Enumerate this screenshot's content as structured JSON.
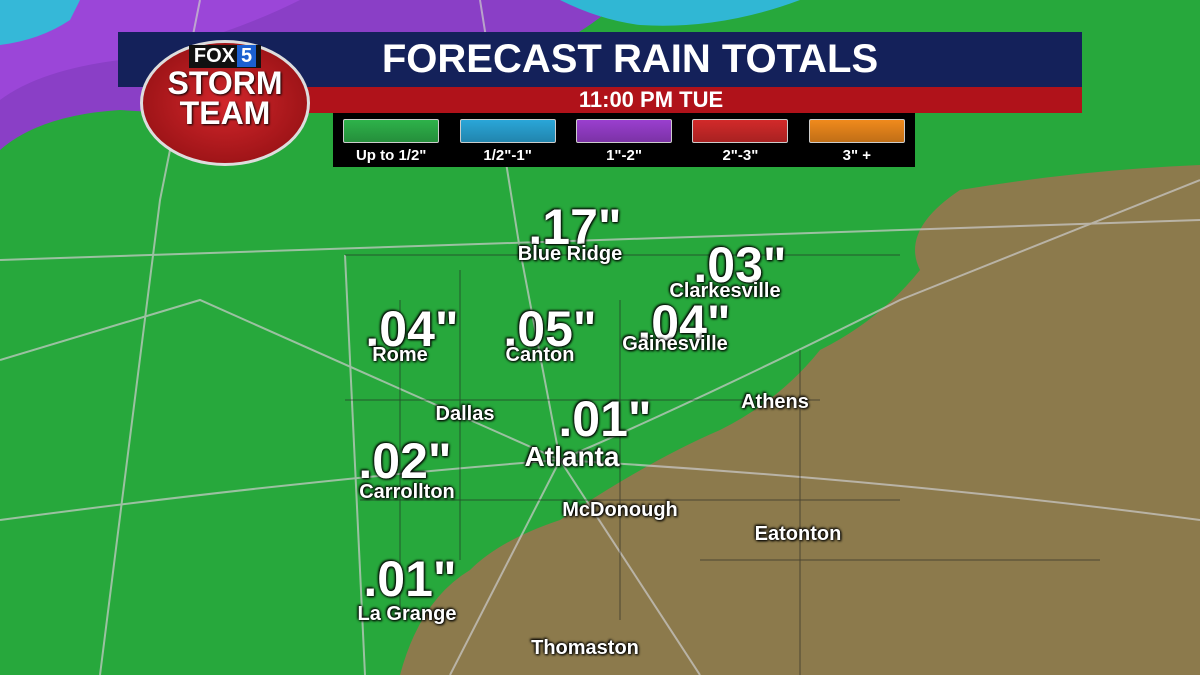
{
  "logo": {
    "brand": "FOX",
    "channel": "5",
    "line1": "STORM",
    "line2": "TEAM"
  },
  "header": {
    "title": "FORECAST RAIN TOTALS",
    "time": "11:00 PM TUE"
  },
  "legend": [
    {
      "label": "Up to 1/2\"",
      "color": "#2eb24a"
    },
    {
      "label": "1/2\"-1\"",
      "color": "#2aa6d8"
    },
    {
      "label": "1\"-2\"",
      "color": "#9a3fcf"
    },
    {
      "label": "2\"-3\"",
      "color": "#d22a2a"
    },
    {
      "label": "3\" +",
      "color": "#f08a1c"
    }
  ],
  "totals": [
    {
      "name": "Blue Ridge",
      "total": ".17\""
    },
    {
      "name": "Clarkesville",
      "total": ".03\""
    },
    {
      "name": "Rome",
      "total": ".04\""
    },
    {
      "name": "Canton",
      "total": ".05\""
    },
    {
      "name": "Gainesville",
      "total": ".04\""
    },
    {
      "name": "Atlanta",
      "total": ".01\""
    },
    {
      "name": "Carrollton",
      "total": ".02\""
    },
    {
      "name": "La Grange",
      "total": ".01\""
    }
  ],
  "places": [
    "Dallas",
    "Athens",
    "McDonough",
    "Eatonton",
    "Thomaston"
  ]
}
